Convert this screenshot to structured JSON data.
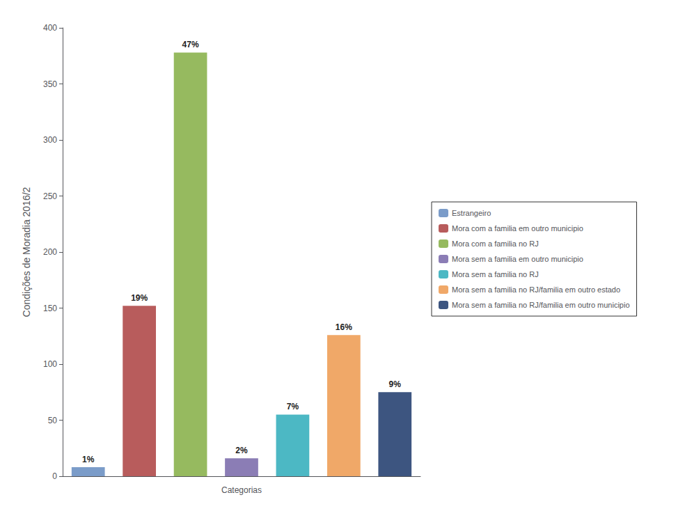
{
  "chart_data": {
    "type": "bar",
    "categories": [
      "Estrangeiro",
      "Mora com a familia em outro municipio",
      "Mora com a familia no RJ",
      "Mora sem a familia em outro municipio",
      "Mora sem a familia no RJ",
      "Mora sem a familia no RJ/familia em outro estado",
      "Mora sem a familia no RJ/familia em outro municipio"
    ],
    "values": [
      8,
      152,
      378,
      16,
      55,
      126,
      75
    ],
    "value_labels": [
      "1%",
      "19%",
      "47%",
      "2%",
      "7%",
      "16%",
      "9%"
    ],
    "data_labels": true,
    "colors": [
      "#7b9cc9",
      "#b85c5c",
      "#96ba5f",
      "#8b7db5",
      "#4cb8c4",
      "#f0a868",
      "#3d5580"
    ],
    "xlabel": "Categorias",
    "ylabel": "Condições de Moradia 2016/2",
    "ylim": [
      0,
      400
    ],
    "yticks": [
      0,
      50,
      100,
      150,
      200,
      250,
      300,
      350,
      400
    ],
    "grid": false,
    "legend": "right",
    "tick_labels": "y"
  }
}
